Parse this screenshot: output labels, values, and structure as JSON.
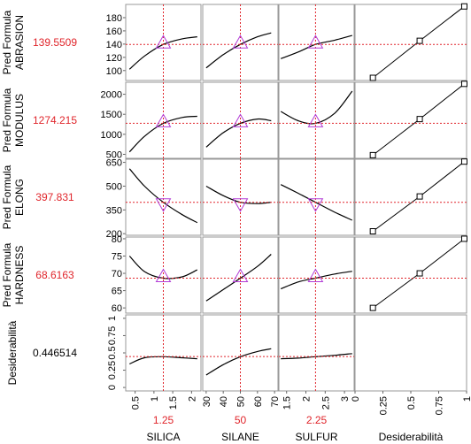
{
  "colors": {
    "grid_line": "#999999",
    "curve": "#000000",
    "crosshair": "#e0252b",
    "marker": "#b23cd6",
    "value_text": "#e0252b",
    "axis_text": "#000000"
  },
  "chart_data": {
    "type": "line",
    "title": "",
    "factors": [
      {
        "name": "SILICA",
        "current": "1.25",
        "current_value": 1.25,
        "range": [
          0.25,
          2.25
        ],
        "ticks": [
          0.5,
          1,
          1.5,
          2
        ],
        "tick_labels": [
          "0.5",
          "1",
          "1.5",
          "2"
        ]
      },
      {
        "name": "SILANE",
        "current": "50",
        "current_value": 50,
        "range": [
          28,
          72
        ],
        "ticks": [
          30,
          40,
          50,
          60,
          70
        ],
        "tick_labels": [
          "30",
          "40",
          "50",
          "60",
          "70"
        ]
      },
      {
        "name": "SULFUR",
        "current": "2.25",
        "current_value": 2.25,
        "range": [
          1.3,
          3.25
        ],
        "ticks": [
          1.5,
          2,
          2.5,
          3
        ],
        "tick_labels": [
          "1.5",
          "2",
          "2.5",
          "3"
        ]
      }
    ],
    "desirability_axis": {
      "name": "Desiderabilità",
      "range": [
        0,
        1
      ],
      "ticks": [
        0,
        0.25,
        0.5,
        0.75,
        1
      ],
      "tick_labels": [
        "0",
        "0.25",
        "0.5",
        "0.75",
        "1"
      ]
    },
    "responses": [
      {
        "name_line1": "Pred Formula",
        "name_line2": "ABRASION",
        "current": "139.5509",
        "current_value": 139.5509,
        "ylim": [
          85,
          200
        ],
        "ticks": [
          100,
          120,
          140,
          160,
          180
        ],
        "tick_labels": [
          "100",
          "120",
          "140",
          "160",
          "180"
        ],
        "marker": "up",
        "profiles": [
          {
            "x": [
              0.35,
              0.75,
              1.25,
              1.75,
              2.15
            ],
            "y": [
              102,
              122,
              139.5,
              148,
              151
            ]
          },
          {
            "x": [
              30,
              40,
              50,
              60,
              68
            ],
            "y": [
              104,
              124,
              139.5,
              151,
              157
            ]
          },
          {
            "x": [
              1.35,
              1.8,
              2.25,
              2.75,
              3.2
            ],
            "y": [
              118,
              128,
              139.5,
              146,
              153
            ]
          }
        ],
        "desirability": {
          "x": [
            0.16,
            0.58,
            0.98
          ],
          "y": [
            89,
            145,
            197
          ]
        }
      },
      {
        "name_line1": "Pred Formula",
        "name_line2": "MODULUS",
        "current": "1274.215",
        "current_value": 1274.215,
        "ylim": [
          400,
          2300
        ],
        "ticks": [
          500,
          1000,
          1500,
          2000
        ],
        "tick_labels": [
          "500",
          "1000",
          "1500",
          "2000"
        ],
        "marker": "up",
        "profiles": [
          {
            "x": [
              0.35,
              0.75,
              1.25,
              1.75,
              2.15
            ],
            "y": [
              560,
              950,
              1274,
              1420,
              1450
            ]
          },
          {
            "x": [
              30,
              40,
              50,
              60,
              68
            ],
            "y": [
              680,
              1040,
              1274,
              1380,
              1340
            ]
          },
          {
            "x": [
              1.35,
              1.8,
              2.25,
              2.75,
              3.2
            ],
            "y": [
              1570,
              1340,
              1274,
              1530,
              2080
            ]
          }
        ],
        "desirability": {
          "x": [
            0.16,
            0.58,
            0.98
          ],
          "y": [
            480,
            1380,
            2260
          ]
        }
      },
      {
        "name_line1": "Pred Formula",
        "name_line2": "ELONG",
        "current": "397.831",
        "current_value": 397.831,
        "ylim": [
          190,
          670
        ],
        "ticks": [
          200,
          350,
          500,
          650
        ],
        "tick_labels": [
          "200",
          "350",
          "500",
          "650"
        ],
        "marker": "down",
        "profiles": [
          {
            "x": [
              0.35,
              0.75,
              1.25,
              1.75,
              2.15
            ],
            "y": [
              610,
              500,
              398,
              320,
              270
            ]
          },
          {
            "x": [
              30,
              40,
              50,
              60,
              68
            ],
            "y": [
              500,
              440,
              398,
              390,
              398
            ]
          },
          {
            "x": [
              1.35,
              1.8,
              2.25,
              2.75,
              3.2
            ],
            "y": [
              510,
              455,
              398,
              335,
              285
            ]
          }
        ],
        "desirability": {
          "x": [
            0.16,
            0.58,
            0.98
          ],
          "y": [
            215,
            435,
            655
          ]
        }
      },
      {
        "name_line1": "Pred Formula",
        "name_line2": "HARDNESS",
        "current": "68.6163",
        "current_value": 68.6163,
        "ylim": [
          58.5,
          80.5
        ],
        "ticks": [
          60,
          65,
          70,
          75,
          80
        ],
        "tick_labels": [
          "60",
          "65",
          "70",
          "75",
          "80"
        ],
        "marker": "up",
        "profiles": [
          {
            "x": [
              0.35,
              0.75,
              1.25,
              1.75,
              2.15
            ],
            "y": [
              75,
              70.5,
              68.6,
              69,
              71
            ]
          },
          {
            "x": [
              30,
              40,
              50,
              60,
              68
            ],
            "y": [
              62,
              65.3,
              68.6,
              72,
              75.5
            ]
          },
          {
            "x": [
              1.35,
              1.8,
              2.25,
              2.75,
              3.2
            ],
            "y": [
              65.5,
              67.5,
              68.6,
              69.8,
              70.6
            ]
          }
        ],
        "desirability": {
          "x": [
            0.16,
            0.58,
            0.98
          ],
          "y": [
            60,
            70,
            80
          ]
        }
      },
      {
        "name_line1": "Desiderabilità",
        "name_line2": "",
        "current": "0.446514",
        "current_value": 0.446514,
        "ylim": [
          -0.05,
          1.05
        ],
        "ticks": [
          0,
          0.25,
          0.5,
          0.75,
          1
        ],
        "tick_labels": [
          "0",
          "0.25",
          "0.5",
          "0.75",
          "1"
        ],
        "marker": "none",
        "profiles": [
          {
            "x": [
              0.35,
              0.75,
              1.25,
              1.75,
              2.15
            ],
            "y": [
              0.34,
              0.43,
              0.445,
              0.43,
              0.415
            ]
          },
          {
            "x": [
              30,
              40,
              50,
              60,
              68
            ],
            "y": [
              0.18,
              0.33,
              0.445,
              0.52,
              0.56
            ]
          },
          {
            "x": [
              1.35,
              1.8,
              2.25,
              2.75,
              3.2
            ],
            "y": [
              0.415,
              0.425,
              0.445,
              0.465,
              0.49
            ]
          }
        ],
        "desirability": null
      }
    ]
  }
}
